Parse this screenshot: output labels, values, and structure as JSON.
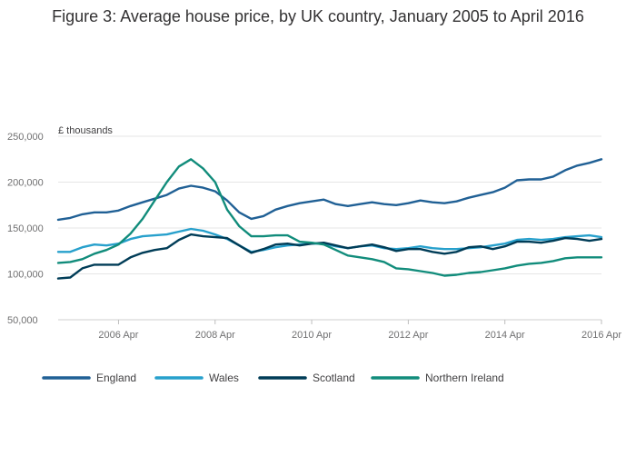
{
  "title": "Figure 3: Average house price, by UK country, January 2005 to April 2016",
  "chart_data": {
    "type": "line",
    "title": "Figure 3: Average house price, by UK country, January 2005 to April 2016",
    "ylabel": "£ thousands",
    "xlabel": "",
    "ylim": [
      50000,
      250000
    ],
    "xlim": [
      "2005-01",
      "2016-04"
    ],
    "grid": true,
    "legend_position": "bottom",
    "y_ticks": [
      {
        "value": 50000,
        "label": "50,000"
      },
      {
        "value": 100000,
        "label": "100,000"
      },
      {
        "value": 150000,
        "label": "150,000"
      },
      {
        "value": 200000,
        "label": "200,000"
      },
      {
        "value": 250000,
        "label": "250,000"
      }
    ],
    "x_ticks": [
      {
        "value": "2006-04",
        "label": "2006 Apr"
      },
      {
        "value": "2008-04",
        "label": "2008 Apr"
      },
      {
        "value": "2010-04",
        "label": "2010 Apr"
      },
      {
        "value": "2012-04",
        "label": "2012 Apr"
      },
      {
        "value": "2014-04",
        "label": "2014 Apr"
      },
      {
        "value": "2016-04",
        "label": "2016 Apr"
      }
    ],
    "series": [
      {
        "name": "England",
        "color": "#206095",
        "points": [
          [
            "2005-01",
            159000
          ],
          [
            "2005-04",
            161000
          ],
          [
            "2005-07",
            165000
          ],
          [
            "2005-10",
            167000
          ],
          [
            "2006-01",
            167000
          ],
          [
            "2006-04",
            169000
          ],
          [
            "2006-07",
            174000
          ],
          [
            "2006-10",
            178000
          ],
          [
            "2007-01",
            182000
          ],
          [
            "2007-04",
            186000
          ],
          [
            "2007-07",
            193000
          ],
          [
            "2007-10",
            196000
          ],
          [
            "2008-01",
            194000
          ],
          [
            "2008-04",
            190000
          ],
          [
            "2008-07",
            180000
          ],
          [
            "2008-10",
            167000
          ],
          [
            "2009-01",
            160000
          ],
          [
            "2009-04",
            163000
          ],
          [
            "2009-07",
            170000
          ],
          [
            "2009-10",
            174000
          ],
          [
            "2010-01",
            177000
          ],
          [
            "2010-04",
            179000
          ],
          [
            "2010-07",
            181000
          ],
          [
            "2010-10",
            176000
          ],
          [
            "2011-01",
            174000
          ],
          [
            "2011-04",
            176000
          ],
          [
            "2011-07",
            178000
          ],
          [
            "2011-10",
            176000
          ],
          [
            "2012-01",
            175000
          ],
          [
            "2012-04",
            177000
          ],
          [
            "2012-07",
            180000
          ],
          [
            "2012-10",
            178000
          ],
          [
            "2013-01",
            177000
          ],
          [
            "2013-04",
            179000
          ],
          [
            "2013-07",
            183000
          ],
          [
            "2013-10",
            186000
          ],
          [
            "2014-01",
            189000
          ],
          [
            "2014-04",
            194000
          ],
          [
            "2014-07",
            202000
          ],
          [
            "2014-10",
            203000
          ],
          [
            "2015-01",
            203000
          ],
          [
            "2015-04",
            206000
          ],
          [
            "2015-07",
            213000
          ],
          [
            "2015-10",
            218000
          ],
          [
            "2016-01",
            221000
          ],
          [
            "2016-04",
            225000
          ]
        ]
      },
      {
        "name": "Wales",
        "color": "#27A0CC",
        "points": [
          [
            "2005-01",
            124000
          ],
          [
            "2005-04",
            124000
          ],
          [
            "2005-07",
            129000
          ],
          [
            "2005-10",
            132000
          ],
          [
            "2006-01",
            131000
          ],
          [
            "2006-04",
            133000
          ],
          [
            "2006-07",
            138000
          ],
          [
            "2006-10",
            141000
          ],
          [
            "2007-01",
            142000
          ],
          [
            "2007-04",
            143000
          ],
          [
            "2007-07",
            146000
          ],
          [
            "2007-10",
            149000
          ],
          [
            "2008-01",
            147000
          ],
          [
            "2008-04",
            143000
          ],
          [
            "2008-07",
            138000
          ],
          [
            "2008-10",
            131000
          ],
          [
            "2009-01",
            124000
          ],
          [
            "2009-04",
            126000
          ],
          [
            "2009-07",
            129000
          ],
          [
            "2009-10",
            131000
          ],
          [
            "2010-01",
            132000
          ],
          [
            "2010-04",
            133000
          ],
          [
            "2010-07",
            133000
          ],
          [
            "2010-10",
            130000
          ],
          [
            "2011-01",
            128000
          ],
          [
            "2011-04",
            130000
          ],
          [
            "2011-07",
            131000
          ],
          [
            "2011-10",
            128000
          ],
          [
            "2012-01",
            127000
          ],
          [
            "2012-04",
            128000
          ],
          [
            "2012-07",
            130000
          ],
          [
            "2012-10",
            128000
          ],
          [
            "2013-01",
            127000
          ],
          [
            "2013-04",
            127000
          ],
          [
            "2013-07",
            128000
          ],
          [
            "2013-10",
            129000
          ],
          [
            "2014-01",
            131000
          ],
          [
            "2014-04",
            133000
          ],
          [
            "2014-07",
            137000
          ],
          [
            "2014-10",
            138000
          ],
          [
            "2015-01",
            137000
          ],
          [
            "2015-04",
            138000
          ],
          [
            "2015-07",
            140000
          ],
          [
            "2015-10",
            141000
          ],
          [
            "2016-01",
            142000
          ],
          [
            "2016-04",
            140000
          ]
        ]
      },
      {
        "name": "Scotland",
        "color": "#003C57",
        "points": [
          [
            "2005-01",
            95000
          ],
          [
            "2005-04",
            96000
          ],
          [
            "2005-07",
            106000
          ],
          [
            "2005-10",
            110000
          ],
          [
            "2006-01",
            110000
          ],
          [
            "2006-04",
            110000
          ],
          [
            "2006-07",
            118000
          ],
          [
            "2006-10",
            123000
          ],
          [
            "2007-01",
            126000
          ],
          [
            "2007-04",
            128000
          ],
          [
            "2007-07",
            137000
          ],
          [
            "2007-10",
            143000
          ],
          [
            "2008-01",
            141000
          ],
          [
            "2008-04",
            140000
          ],
          [
            "2008-07",
            139000
          ],
          [
            "2008-10",
            131000
          ],
          [
            "2009-01",
            123000
          ],
          [
            "2009-04",
            127000
          ],
          [
            "2009-07",
            132000
          ],
          [
            "2009-10",
            133000
          ],
          [
            "2010-01",
            131000
          ],
          [
            "2010-04",
            133000
          ],
          [
            "2010-07",
            134000
          ],
          [
            "2010-10",
            131000
          ],
          [
            "2011-01",
            128000
          ],
          [
            "2011-04",
            130000
          ],
          [
            "2011-07",
            132000
          ],
          [
            "2011-10",
            129000
          ],
          [
            "2012-01",
            125000
          ],
          [
            "2012-04",
            127000
          ],
          [
            "2012-07",
            127000
          ],
          [
            "2012-10",
            124000
          ],
          [
            "2013-01",
            122000
          ],
          [
            "2013-04",
            124000
          ],
          [
            "2013-07",
            129000
          ],
          [
            "2013-10",
            130000
          ],
          [
            "2014-01",
            127000
          ],
          [
            "2014-04",
            130000
          ],
          [
            "2014-07",
            135000
          ],
          [
            "2014-10",
            135000
          ],
          [
            "2015-01",
            134000
          ],
          [
            "2015-04",
            136000
          ],
          [
            "2015-07",
            139000
          ],
          [
            "2015-10",
            138000
          ],
          [
            "2016-01",
            136000
          ],
          [
            "2016-04",
            138000
          ]
        ]
      },
      {
        "name": "Northern Ireland",
        "color": "#118C7B",
        "points": [
          [
            "2005-01",
            112000
          ],
          [
            "2005-04",
            113000
          ],
          [
            "2005-07",
            116000
          ],
          [
            "2005-10",
            122000
          ],
          [
            "2006-01",
            126000
          ],
          [
            "2006-04",
            132000
          ],
          [
            "2006-07",
            144000
          ],
          [
            "2006-10",
            160000
          ],
          [
            "2007-01",
            180000
          ],
          [
            "2007-04",
            200000
          ],
          [
            "2007-07",
            217000
          ],
          [
            "2007-10",
            225000
          ],
          [
            "2008-01",
            215000
          ],
          [
            "2008-04",
            200000
          ],
          [
            "2008-07",
            170000
          ],
          [
            "2008-10",
            152000
          ],
          [
            "2009-01",
            141000
          ],
          [
            "2009-04",
            141000
          ],
          [
            "2009-07",
            142000
          ],
          [
            "2009-10",
            142000
          ],
          [
            "2010-01",
            135000
          ],
          [
            "2010-04",
            134000
          ],
          [
            "2010-07",
            132000
          ],
          [
            "2010-10",
            126000
          ],
          [
            "2011-01",
            120000
          ],
          [
            "2011-04",
            118000
          ],
          [
            "2011-07",
            116000
          ],
          [
            "2011-10",
            113000
          ],
          [
            "2012-01",
            106000
          ],
          [
            "2012-04",
            105000
          ],
          [
            "2012-07",
            103000
          ],
          [
            "2012-10",
            101000
          ],
          [
            "2013-01",
            98000
          ],
          [
            "2013-04",
            99000
          ],
          [
            "2013-07",
            101000
          ],
          [
            "2013-10",
            102000
          ],
          [
            "2014-01",
            104000
          ],
          [
            "2014-04",
            106000
          ],
          [
            "2014-07",
            109000
          ],
          [
            "2014-10",
            111000
          ],
          [
            "2015-01",
            112000
          ],
          [
            "2015-04",
            114000
          ],
          [
            "2015-07",
            117000
          ],
          [
            "2015-10",
            118000
          ],
          [
            "2016-01",
            118000
          ],
          [
            "2016-04",
            118000
          ]
        ]
      }
    ]
  }
}
